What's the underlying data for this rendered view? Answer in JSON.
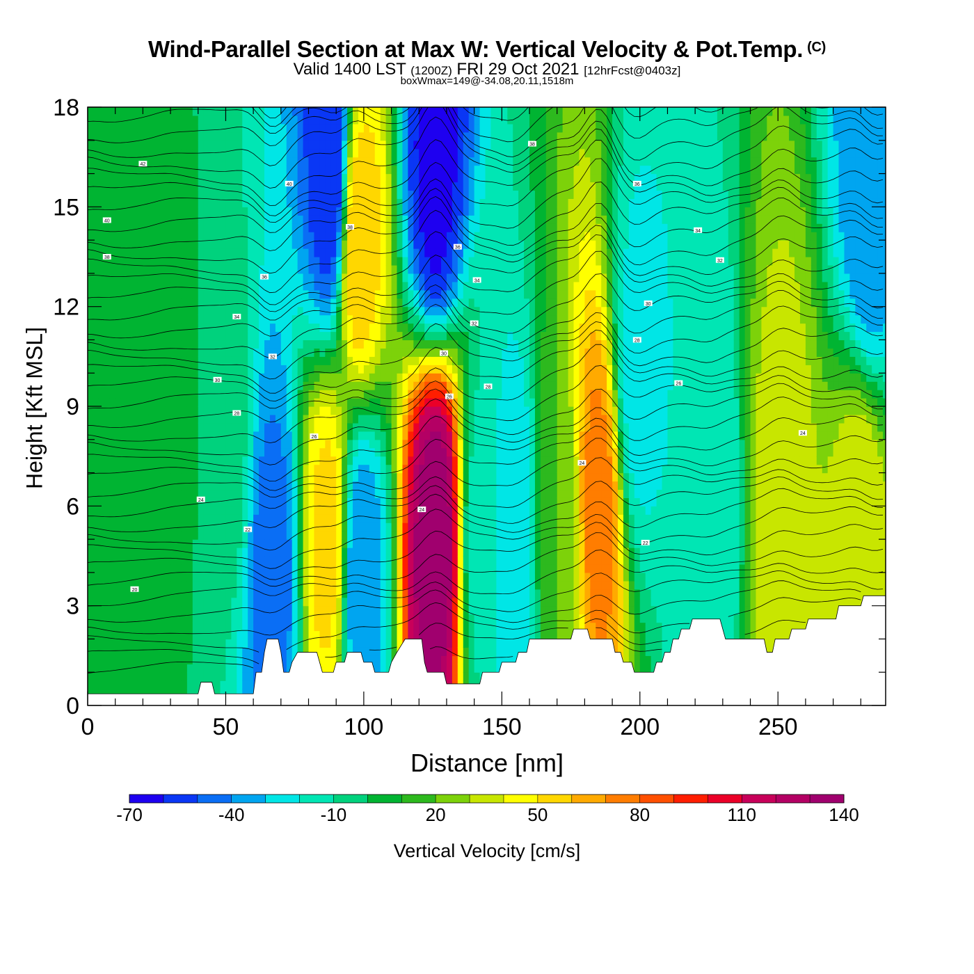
{
  "title": {
    "main": "Wind-Parallel Section at Max W: Vertical Velocity & Pot.Temp.",
    "copyright": "(C)",
    "valid_prefix": "Valid 1400 LST",
    "valid_utc": "(1200Z)",
    "valid_date": "FRI 29 Oct 2021",
    "forecast": "[12hrFcst@0403z]",
    "box_info": "boxWmax=149@-34.08,20.11,1518m"
  },
  "chart_data": {
    "type": "heatmap",
    "xlabel": "Distance [nm]",
    "ylabel": "Height [Kft MSL]",
    "xlim": [
      0,
      289
    ],
    "ylim": [
      0,
      18
    ],
    "x_ticks": [
      "0",
      "50",
      "100",
      "150",
      "200",
      "250"
    ],
    "y_ticks": [
      "0",
      "3",
      "6",
      "9",
      "12",
      "15",
      "18"
    ],
    "colorbar": {
      "label": "Vertical Velocity [cm/s]",
      "ticks": [
        "-70",
        "-40",
        "-10",
        "20",
        "50",
        "80",
        "110",
        "140"
      ],
      "range": [
        -70,
        140
      ],
      "step": 10,
      "colors": [
        "#1e00f0",
        "#0a37f5",
        "#0a6ef5",
        "#00a5f0",
        "#00e6e6",
        "#00e6b4",
        "#00d27d",
        "#00b432",
        "#2db91e",
        "#7dd20a",
        "#c8e600",
        "#ffff00",
        "#ffd700",
        "#ffaa00",
        "#ff7d00",
        "#ff5000",
        "#ff1e00",
        "#eb0028",
        "#c8005a",
        "#b40064",
        "#a0006e"
      ]
    },
    "velocity_features": [
      {
        "x": 0,
        "y": 9,
        "value": 10
      },
      {
        "x": 30,
        "y": 9,
        "value": 5
      },
      {
        "x": 50,
        "y": 8,
        "value": -5
      },
      {
        "x": 67,
        "y": 4,
        "value": -45
      },
      {
        "x": 87,
        "y": 5,
        "value": 55
      },
      {
        "x": 88,
        "y": 16,
        "value": -60
      },
      {
        "x": 98,
        "y": 14,
        "value": 60
      },
      {
        "x": 99,
        "y": 4,
        "value": -40
      },
      {
        "x": 126,
        "y": 5,
        "value": 140
      },
      {
        "x": 126,
        "y": 16,
        "value": -65
      },
      {
        "x": 143,
        "y": 5,
        "value": -15
      },
      {
        "x": 154,
        "y": 4.6,
        "value": -30
      },
      {
        "x": 171,
        "y": 5,
        "value": 20
      },
      {
        "x": 185,
        "y": 6,
        "value": 75
      },
      {
        "x": 199,
        "y": 10,
        "value": -25
      },
      {
        "x": 225,
        "y": 6,
        "value": -20
      },
      {
        "x": 251,
        "y": 6,
        "value": 35
      },
      {
        "x": 280,
        "y": 5,
        "value": 40
      },
      {
        "x": 283,
        "y": 15,
        "value": -40
      }
    ],
    "theta_contour_labels": [
      {
        "x": 20,
        "y": 16.3,
        "label": "42"
      },
      {
        "x": 7,
        "y": 14.6,
        "label": "40"
      },
      {
        "x": 7,
        "y": 13.5,
        "label": "38"
      },
      {
        "x": 73,
        "y": 15.7,
        "label": "40"
      },
      {
        "x": 95,
        "y": 14.4,
        "label": "38"
      },
      {
        "x": 64,
        "y": 12.9,
        "label": "36"
      },
      {
        "x": 54,
        "y": 11.7,
        "label": "34"
      },
      {
        "x": 67,
        "y": 10.5,
        "label": "32"
      },
      {
        "x": 47,
        "y": 9.8,
        "label": "30"
      },
      {
        "x": 54,
        "y": 8.8,
        "label": "28"
      },
      {
        "x": 82,
        "y": 8.1,
        "label": "26"
      },
      {
        "x": 41,
        "y": 6.2,
        "label": "24"
      },
      {
        "x": 58,
        "y": 5.3,
        "label": "22"
      },
      {
        "x": 17,
        "y": 3.5,
        "label": "20"
      },
      {
        "x": 161,
        "y": 16.9,
        "label": "38"
      },
      {
        "x": 199,
        "y": 15.7,
        "label": "36"
      },
      {
        "x": 134,
        "y": 13.8,
        "label": "36"
      },
      {
        "x": 141,
        "y": 12.8,
        "label": "34"
      },
      {
        "x": 140,
        "y": 11.5,
        "label": "32"
      },
      {
        "x": 129,
        "y": 10.6,
        "label": "30"
      },
      {
        "x": 145,
        "y": 9.6,
        "label": "28"
      },
      {
        "x": 131,
        "y": 9.3,
        "label": "26"
      },
      {
        "x": 121,
        "y": 5.9,
        "label": "24"
      },
      {
        "x": 179,
        "y": 7.3,
        "label": "24"
      },
      {
        "x": 202,
        "y": 4.9,
        "label": "22"
      },
      {
        "x": 221,
        "y": 14.3,
        "label": "34"
      },
      {
        "x": 229,
        "y": 13.4,
        "label": "32"
      },
      {
        "x": 203,
        "y": 12.1,
        "label": "30"
      },
      {
        "x": 199,
        "y": 11.0,
        "label": "28"
      },
      {
        "x": 214,
        "y": 9.7,
        "label": "26"
      },
      {
        "x": 259,
        "y": 8.2,
        "label": "24"
      }
    ],
    "terrain": [
      [
        0,
        0.35
      ],
      [
        40,
        0.35
      ],
      [
        41,
        0.7
      ],
      [
        45,
        0.7
      ],
      [
        46,
        0.35
      ],
      [
        60,
        0.35
      ],
      [
        61,
        1.0
      ],
      [
        63,
        1.0
      ],
      [
        64,
        1.6
      ],
      [
        65,
        2.0
      ],
      [
        69,
        2.0
      ],
      [
        70,
        1.6
      ],
      [
        71,
        1.0
      ],
      [
        73,
        1.0
      ],
      [
        74,
        1.3
      ],
      [
        76,
        1.6
      ],
      [
        83,
        1.6
      ],
      [
        84,
        1.3
      ],
      [
        85,
        1.0
      ],
      [
        89,
        1.0
      ],
      [
        90,
        1.3
      ],
      [
        93,
        1.3
      ],
      [
        94,
        1.6
      ],
      [
        99,
        1.6
      ],
      [
        100,
        1.3
      ],
      [
        103,
        1.3
      ],
      [
        104,
        1.0
      ],
      [
        109,
        1.0
      ],
      [
        110,
        1.3
      ],
      [
        112,
        1.6
      ],
      [
        115,
        2.0
      ],
      [
        121,
        2.0
      ],
      [
        122,
        1.3
      ],
      [
        123,
        1.0
      ],
      [
        129,
        1.0
      ],
      [
        130,
        0.65
      ],
      [
        142,
        0.65
      ],
      [
        143,
        1.0
      ],
      [
        149,
        1.0
      ],
      [
        150,
        1.3
      ],
      [
        155,
        1.3
      ],
      [
        156,
        1.6
      ],
      [
        159,
        1.6
      ],
      [
        160,
        2.0
      ],
      [
        175,
        2.0
      ],
      [
        176,
        2.3
      ],
      [
        181,
        2.3
      ],
      [
        182,
        2.0
      ],
      [
        190,
        2.0
      ],
      [
        191,
        1.6
      ],
      [
        193,
        1.6
      ],
      [
        194,
        1.3
      ],
      [
        197,
        1.3
      ],
      [
        198,
        1.0
      ],
      [
        205,
        1.0
      ],
      [
        206,
        1.3
      ],
      [
        208,
        1.3
      ],
      [
        209,
        1.6
      ],
      [
        211,
        1.6
      ],
      [
        212,
        2.0
      ],
      [
        214,
        2.0
      ],
      [
        215,
        2.3
      ],
      [
        218,
        2.3
      ],
      [
        219,
        2.6
      ],
      [
        229,
        2.6
      ],
      [
        230,
        2.3
      ],
      [
        231,
        2.0
      ],
      [
        245,
        2.0
      ],
      [
        246,
        1.6
      ],
      [
        248,
        1.6
      ],
      [
        249,
        2.0
      ],
      [
        254,
        2.0
      ],
      [
        255,
        2.3
      ],
      [
        260,
        2.3
      ],
      [
        261,
        2.6
      ],
      [
        271,
        2.6
      ],
      [
        272,
        3.0
      ],
      [
        280,
        3.0
      ],
      [
        281,
        3.3
      ],
      [
        289,
        3.3
      ]
    ]
  }
}
